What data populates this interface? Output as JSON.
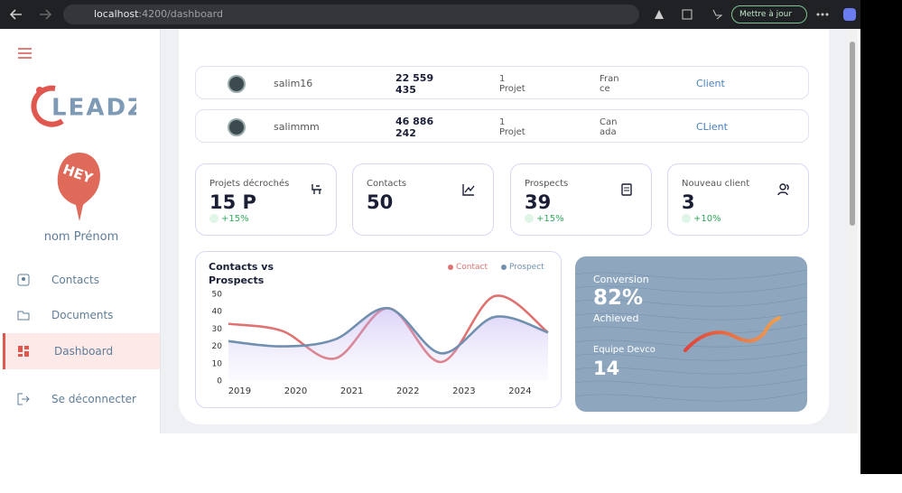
{
  "browser": {
    "url_host": "localhost",
    "url_path": ":4200/dashboard",
    "update_button": "Mettre à jour"
  },
  "sidebar": {
    "logo": "LEADZ",
    "avatar_text": "HEY",
    "user_name": "nom Prénom",
    "nav": [
      "Contacts",
      "Documents",
      "Dashboard",
      "Se déconnecter"
    ]
  },
  "table": {
    "rows": [
      [
        "salim16",
        "22 559 435",
        "1 Projet",
        "France",
        "Client"
      ],
      [
        "salimmm",
        "46 886 242",
        "1 Projet",
        "Canada",
        "CLient"
      ]
    ]
  },
  "cards": [
    {
      "label": "Projets décrochés",
      "value": "15 P",
      "change": "+15%"
    },
    {
      "label": "Contacts",
      "value": "50"
    },
    {
      "label": "Prospects",
      "value": "39",
      "change": "+15%"
    },
    {
      "label": "Nouveau client",
      "value": "3",
      "change": "+10%"
    }
  ],
  "chart_data": {
    "type": "line",
    "title": "Contacts vs Prospects",
    "x": [
      2018.8,
      2019.75,
      2020.7,
      2021.65,
      2022.6,
      2023.55,
      2024.5
    ],
    "xlim": [
      2018.8,
      2024.5
    ],
    "xticks": [
      2019,
      2020,
      2021,
      2022,
      2023,
      2024
    ],
    "ylim": [
      0,
      50
    ],
    "yticks": [
      0,
      10,
      20,
      30,
      40,
      50
    ],
    "smooth": true,
    "series": [
      {
        "name": "Contact",
        "color": "#e07272",
        "values": [
          33,
          29,
          13,
          42,
          11,
          49,
          28
        ]
      },
      {
        "name": "Prospect",
        "color": "#7190b0",
        "values": [
          23,
          20,
          24,
          42,
          16,
          37,
          28
        ]
      }
    ]
  },
  "conversion": {
    "label": "Conversion",
    "value": "82%",
    "sub": "Achieved",
    "team_label": "Equipe Devco",
    "team_value": "14"
  }
}
